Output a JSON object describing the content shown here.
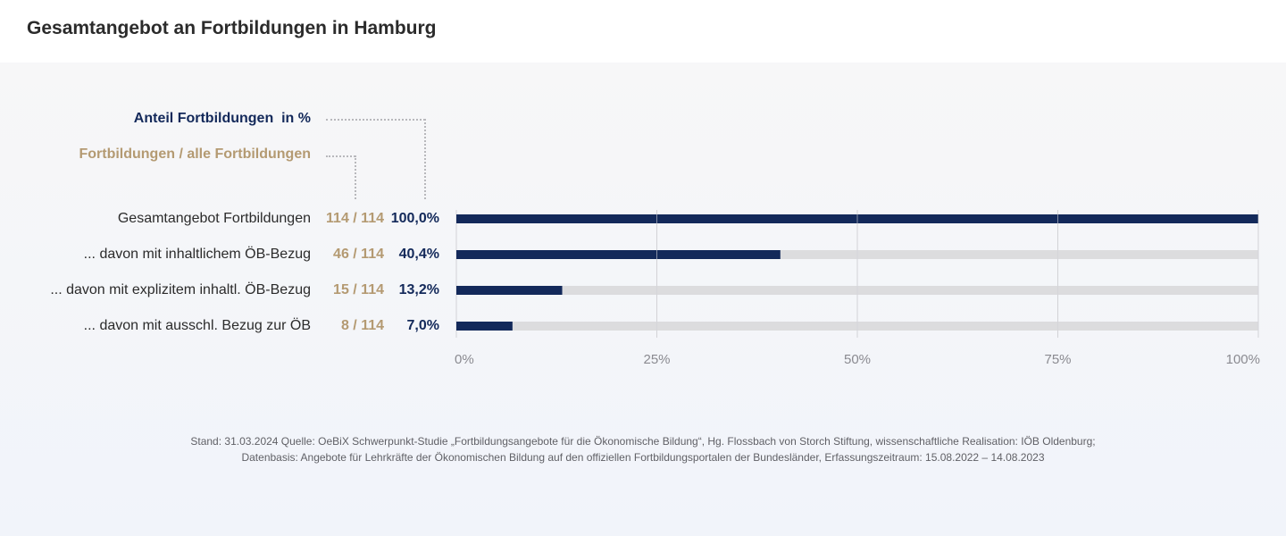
{
  "header": {
    "title": "Gesamtangebot an Fortbildungen in Hamburg"
  },
  "legend": {
    "percent_label": "Anteil Fortbildungen  in %",
    "count_label": "Fortbildungen / alle Fortbildungen"
  },
  "colors": {
    "bar": "#13295a",
    "track": "#dcdcde",
    "count_text": "#b49a72",
    "percent_text": "#13295a",
    "grid": "#d2d2d6",
    "tick_text": "#8a8a90"
  },
  "chart_data": {
    "type": "bar",
    "orientation": "horizontal",
    "categories": [
      "Gesamtangebot Fortbildungen",
      "... davon mit inhaltlichem ÖB-Bezug",
      "... davon mit explizitem inhaltl. ÖB-Bezug",
      "... davon mit ausschl. Bezug zur ÖB"
    ],
    "counts": [
      "114 / 114",
      "46 / 114",
      "15 / 114",
      "8 / 114"
    ],
    "percent_labels": [
      "100,0%",
      "40,4%",
      "13,2%",
      "7,0%"
    ],
    "values": [
      100.0,
      40.4,
      13.2,
      7.0
    ],
    "xlim": [
      0,
      100
    ],
    "xticks": [
      "0%",
      "25%",
      "50%",
      "75%",
      "100%"
    ],
    "grid": true
  },
  "source": {
    "line1": "Stand: 31.03.2024 Quelle: OeBiX Schwerpunkt-Studie „Fortbildungsangebote für die Ökonomische Bildung“, Hg. Flossbach von Storch Stiftung, wissenschaftliche Realisation: IÖB Oldenburg;",
    "line2": "Datenbasis: Angebote für Lehrkräfte der Ökonomischen Bildung auf den offiziellen Fortbildungsportalen der Bundesländer, Erfassungszeitraum: 15.08.2022 – 14.08.2023"
  }
}
